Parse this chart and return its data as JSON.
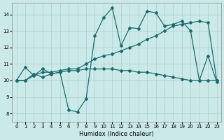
{
  "xlabel": "Humidex (Indice chaleur)",
  "xlim": [
    -0.5,
    23.5
  ],
  "ylim": [
    7.5,
    14.7
  ],
  "xticks": [
    0,
    1,
    2,
    3,
    4,
    5,
    6,
    7,
    8,
    9,
    10,
    11,
    12,
    13,
    14,
    15,
    16,
    17,
    18,
    19,
    20,
    21,
    22,
    23
  ],
  "yticks": [
    8,
    9,
    10,
    11,
    12,
    13,
    14
  ],
  "background_color": "#cce9e9",
  "grid_color": "#aacfcf",
  "line_color": "#1a6b6b",
  "s1_x": [
    0,
    1,
    2,
    3,
    4,
    5,
    6,
    7,
    8,
    9,
    10,
    11,
    12,
    13,
    14,
    15,
    16,
    17,
    18,
    19,
    20,
    21,
    22,
    23
  ],
  "s1_y": [
    10.0,
    10.8,
    10.3,
    10.7,
    10.4,
    10.5,
    8.2,
    8.1,
    8.9,
    12.7,
    13.8,
    14.4,
    12.1,
    13.2,
    13.15,
    14.2,
    14.1,
    13.3,
    13.4,
    13.6,
    13.0,
    10.0,
    11.5,
    9.9
  ],
  "s2_x": [
    0,
    1,
    2,
    3,
    4,
    5,
    6,
    7,
    8,
    9,
    10,
    11,
    12,
    13,
    14,
    15,
    16,
    17,
    18,
    19,
    20,
    21,
    22,
    23
  ],
  "s2_y": [
    10.0,
    10.0,
    10.3,
    10.5,
    10.5,
    10.6,
    10.7,
    10.7,
    11.0,
    11.3,
    11.5,
    11.6,
    11.8,
    12.0,
    12.2,
    12.5,
    12.7,
    13.0,
    13.3,
    13.4,
    13.5,
    13.6,
    13.5,
    10.0
  ],
  "s3_x": [
    0,
    1,
    2,
    3,
    4,
    5,
    6,
    7,
    8,
    9,
    10,
    11,
    12,
    13,
    14,
    15,
    16,
    17,
    18,
    19,
    20,
    21,
    22,
    23
  ],
  "s3_y": [
    10.0,
    10.0,
    10.4,
    10.2,
    10.4,
    10.5,
    10.6,
    10.6,
    10.7,
    10.7,
    10.7,
    10.7,
    10.6,
    10.6,
    10.5,
    10.5,
    10.4,
    10.3,
    10.2,
    10.1,
    10.0,
    10.0,
    10.0,
    10.0
  ]
}
